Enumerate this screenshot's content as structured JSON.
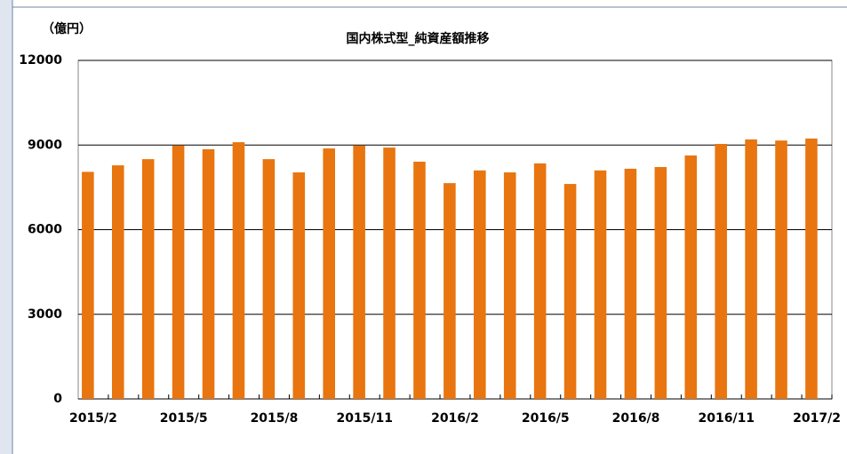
{
  "chart_data": {
    "type": "bar",
    "title": "国内株式型_純資産額推移",
    "y_label": "（億円）",
    "categories": [
      "2015/2",
      null,
      null,
      "2015/5",
      null,
      null,
      "2015/8",
      null,
      null,
      "2015/11",
      null,
      null,
      "2016/2",
      null,
      null,
      "2016/5",
      null,
      null,
      "2016/8",
      null,
      null,
      "2016/11",
      null,
      null,
      "2017/2"
    ],
    "values": [
      8050,
      8280,
      8500,
      8980,
      8850,
      9100,
      8500,
      8030,
      8880,
      8980,
      8910,
      8410,
      7650,
      8100,
      8030,
      8350,
      7620,
      8100,
      8160,
      8220,
      8630,
      9040,
      9200,
      9160,
      9230
    ],
    "color": "#e8750f",
    "ylim": [
      0,
      12000
    ],
    "yticks": [
      0,
      3000,
      6000,
      9000,
      12000
    ],
    "grid": true
  }
}
